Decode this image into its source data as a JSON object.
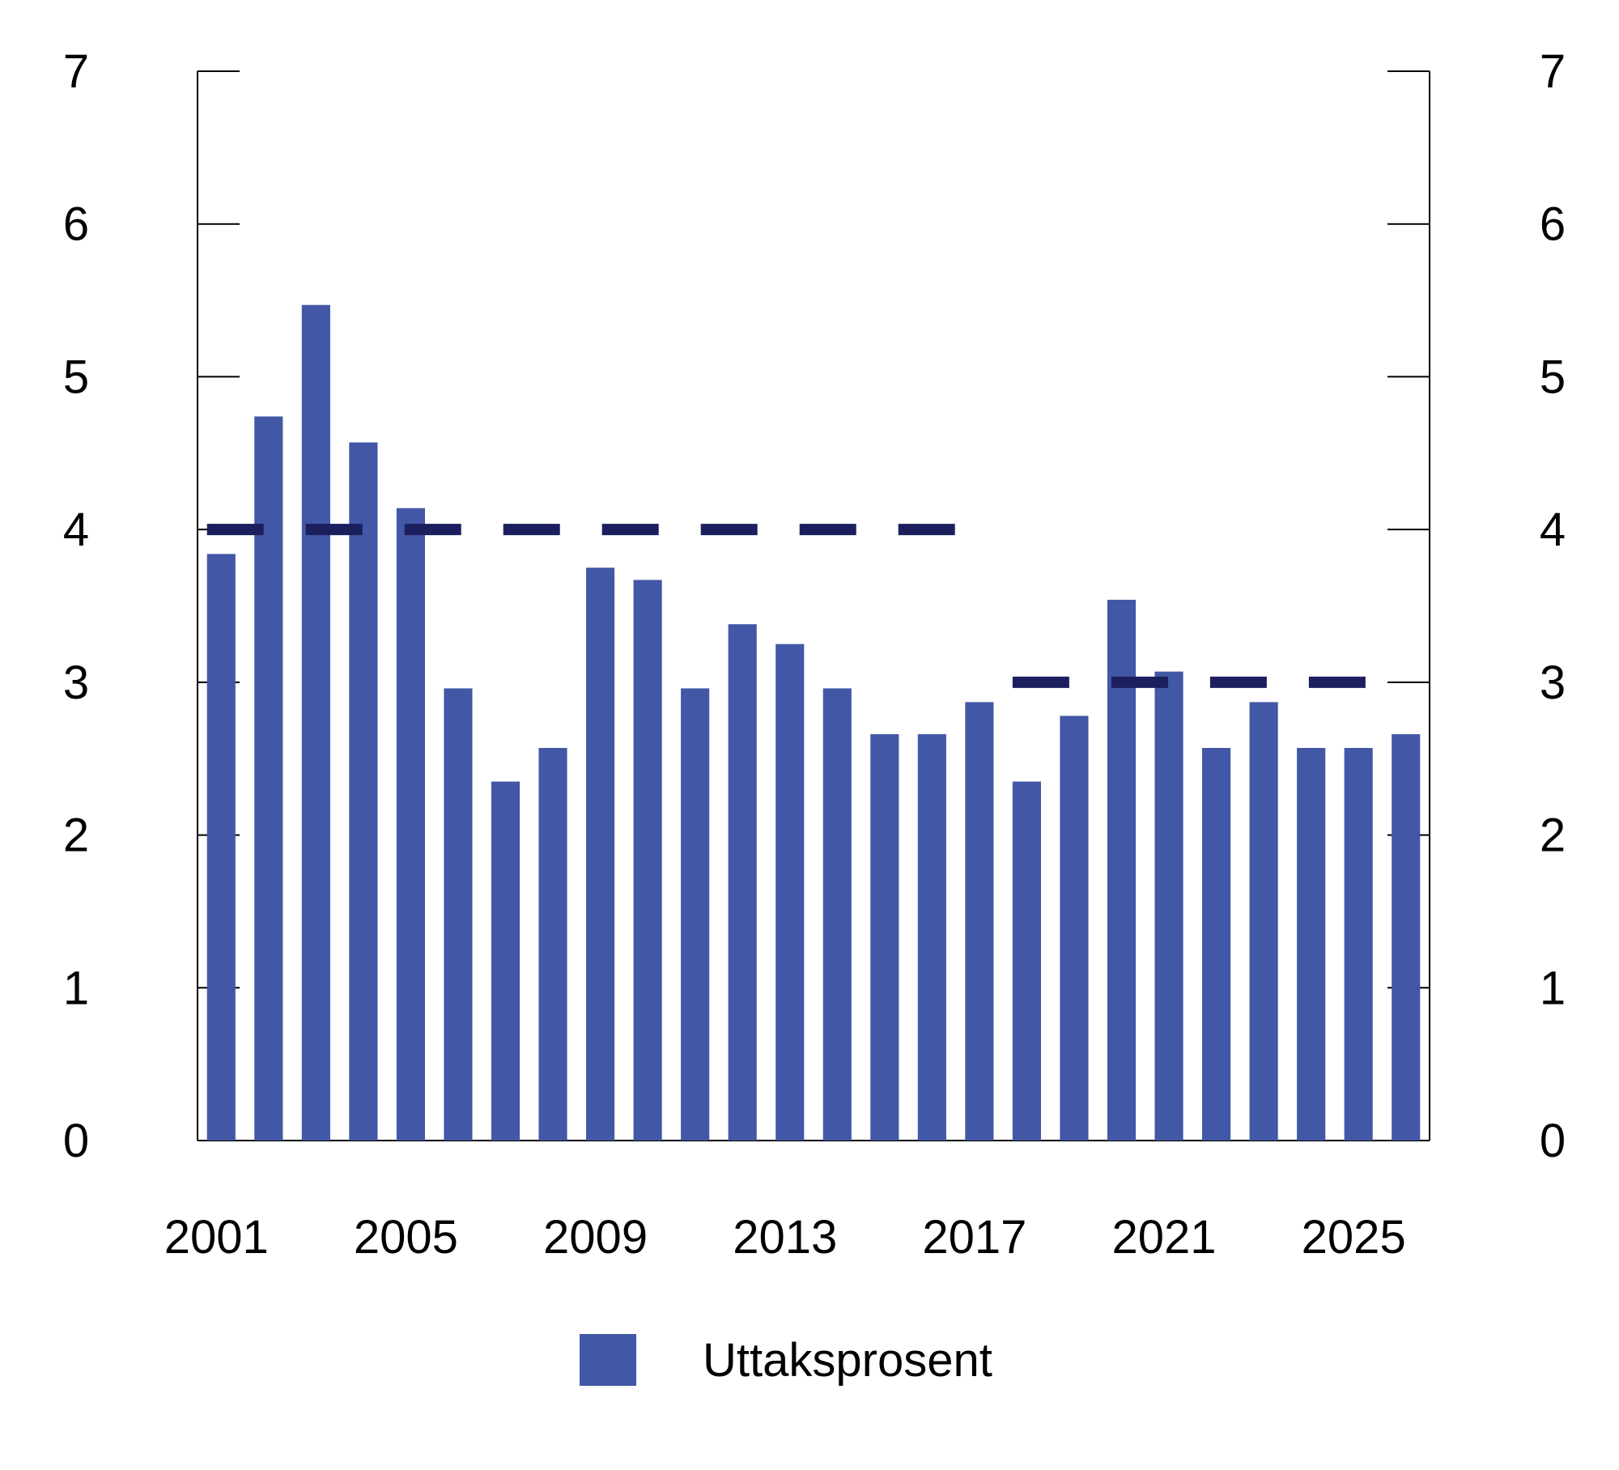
{
  "chart_data": {
    "type": "bar",
    "title": "",
    "xlabel": "",
    "ylabel": "",
    "ylim": [
      0,
      7
    ],
    "yticks": [
      0,
      1,
      2,
      3,
      4,
      5,
      6,
      7
    ],
    "x_tick_labels": [
      "2001",
      "2005",
      "2009",
      "2013",
      "2017",
      "2021",
      "2025"
    ],
    "categories": [
      "2001",
      "2002",
      "2003",
      "2004",
      "2005",
      "2006",
      "2007",
      "2008",
      "2009",
      "2010",
      "2011",
      "2012",
      "2013",
      "2014",
      "2015",
      "2016",
      "2017",
      "2018",
      "2019",
      "2020",
      "2021",
      "2022",
      "2023",
      "2024",
      "2025",
      "2026"
    ],
    "series": [
      {
        "name": "Uttaksprosent",
        "color": "#4257a5",
        "values": [
          3.84,
          4.74,
          5.47,
          4.57,
          4.14,
          2.96,
          2.35,
          2.57,
          3.75,
          3.67,
          2.96,
          3.38,
          3.25,
          2.96,
          2.66,
          2.66,
          2.87,
          2.35,
          2.78,
          3.54,
          3.07,
          2.57,
          2.87,
          2.57,
          2.57,
          2.66
        ]
      }
    ],
    "reference_lines": [
      {
        "y": 4,
        "from": "2001",
        "to": "2017",
        "color": "#1c1f5e",
        "style": "dashed"
      },
      {
        "y": 3,
        "from": "2018",
        "to": "2025",
        "color": "#1c1f5e",
        "style": "dashed"
      }
    ],
    "legend": {
      "position": "bottom-center",
      "entries": [
        "Uttaksprosent"
      ]
    },
    "grid": false
  }
}
